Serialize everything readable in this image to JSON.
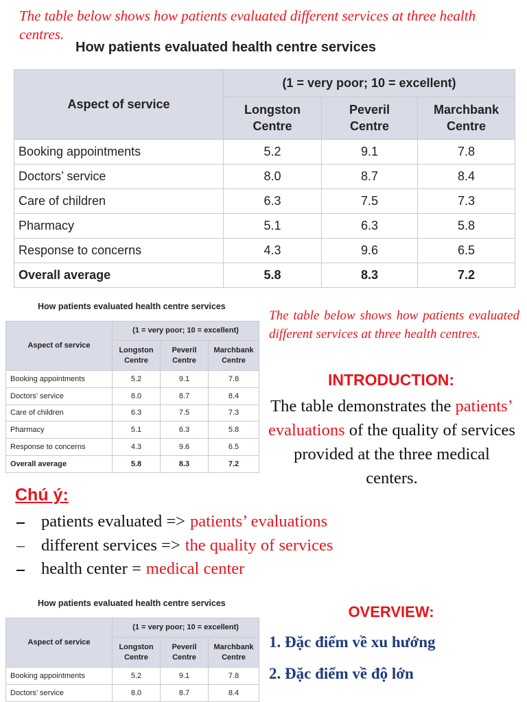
{
  "prompt": "The table below shows how patients evaluated different services at three health centres.",
  "table": {
    "title": "How patients evaluated health centre services",
    "scale": "(1 = very poor; 10 = excellent)",
    "aspect_header": "Aspect of service",
    "columns": [
      "Longston Centre",
      "Peveril Centre",
      "Marchbank Centre"
    ],
    "rows": [
      [
        "Booking appointments",
        "5.2",
        "9.1",
        "7.8"
      ],
      [
        "Doctors’ service",
        "8.0",
        "8.7",
        "8.4"
      ],
      [
        "Care of children",
        "6.3",
        "7.5",
        "7.3"
      ],
      [
        "Pharmacy",
        "5.1",
        "6.3",
        "5.8"
      ],
      [
        "Response to concerns",
        "4.3",
        "9.6",
        "6.5"
      ],
      [
        "Overall average",
        "5.8",
        "8.3",
        "7.2"
      ]
    ]
  },
  "introduction": {
    "heading": "INTRODUCTION:",
    "parts": [
      "The table demonstrates the ",
      "patients’ evaluations",
      " of the quality of services provided at the three medical centers."
    ]
  },
  "note": {
    "heading": "Chú ý:",
    "items": [
      {
        "source": "patients evaluated =>",
        "target": "patients’ evaluations"
      },
      {
        "source": "different services =>",
        "target": "the quality of services"
      },
      {
        "source": "health center =",
        "target": "medical center"
      }
    ]
  },
  "overview": {
    "heading": "OVERVIEW:",
    "items": [
      "1. Đặc điểm về xu hướng",
      "2. Đặc điểm về độ lớn"
    ]
  }
}
